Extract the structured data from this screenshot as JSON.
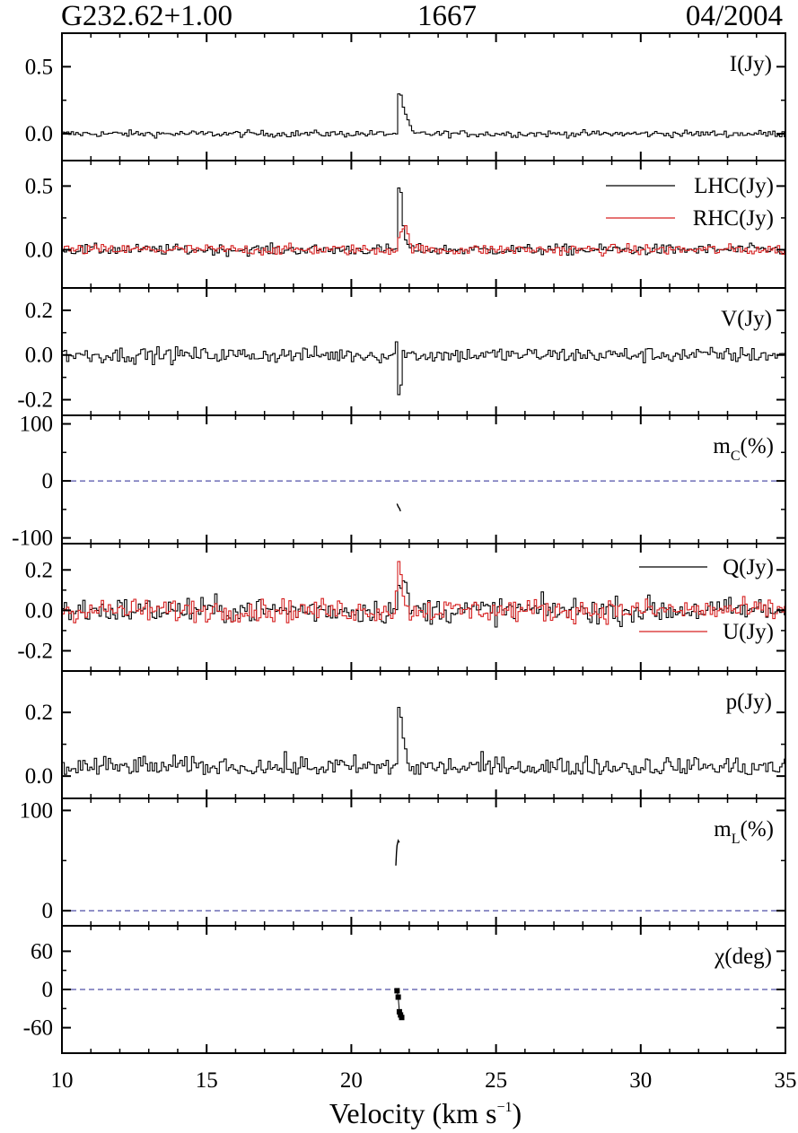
{
  "header": {
    "source": "G232.62+1.00",
    "frequency": "1667",
    "date": "04/2004"
  },
  "chart_data": {
    "type": "line",
    "xlabel": "Velocity (km s^-1)",
    "xlabel_parts": {
      "main": "Velocity (km s",
      "sup": "−1",
      "close": ")"
    },
    "xlim": [
      10,
      35
    ],
    "xticks": [
      10,
      15,
      20,
      25,
      30,
      35
    ],
    "panels": [
      {
        "id": "I",
        "label": "I(Jy)",
        "ylim": [
          -0.2,
          0.75
        ],
        "yticks": [
          0.0,
          0.5
        ],
        "ytick_labels": [
          "0.0",
          "0.5"
        ],
        "series": [
          {
            "color": "#000000",
            "style": "step",
            "noise": 0.018,
            "baseline": 0.0,
            "peaks": [
              [
                21.62,
                0.3
              ],
              [
                21.7,
                0.28
              ],
              [
                21.78,
                0.2
              ],
              [
                21.86,
                0.14
              ],
              [
                21.94,
                0.1
              ],
              [
                22.02,
                0.06
              ]
            ]
          }
        ]
      },
      {
        "id": "LHC_RHC",
        "label": "",
        "ylim": [
          -0.3,
          0.7
        ],
        "yticks": [
          0.0,
          0.5
        ],
        "ytick_labels": [
          "0.0",
          "0.5"
        ],
        "legend": [
          "LHC(Jy)",
          "RHC(Jy)"
        ],
        "series": [
          {
            "name": "LHC(Jy)",
            "color": "#000000",
            "style": "step",
            "noise": 0.03,
            "baseline": 0.0,
            "peaks": [
              [
                21.62,
                0.49
              ],
              [
                21.7,
                0.45
              ],
              [
                21.78,
                0.18
              ],
              [
                21.86,
                0.08
              ],
              [
                21.94,
                0.04
              ]
            ]
          },
          {
            "name": "RHC(Jy)",
            "color": "#d62020",
            "style": "step",
            "noise": 0.03,
            "baseline": 0.0,
            "peaks": [
              [
                21.62,
                0.1
              ],
              [
                21.7,
                0.14
              ],
              [
                21.78,
                0.16
              ],
              [
                21.86,
                0.18
              ],
              [
                21.94,
                0.12
              ],
              [
                22.02,
                0.06
              ]
            ]
          }
        ]
      },
      {
        "id": "V",
        "label": "V(Jy)",
        "ylim": [
          -0.27,
          0.3
        ],
        "yticks": [
          -0.2,
          0.0,
          0.2
        ],
        "ytick_labels": [
          "-0.2",
          "0.0",
          "0.2"
        ],
        "series": [
          {
            "color": "#000000",
            "style": "step",
            "noise": 0.025,
            "baseline": 0.0,
            "peaks": [
              [
                21.54,
                0.06
              ],
              [
                21.62,
                -0.18
              ],
              [
                21.7,
                -0.14
              ],
              [
                21.78,
                0.03
              ]
            ]
          }
        ]
      },
      {
        "id": "mc",
        "label": "m_C(%)",
        "label_parts": {
          "main": "m",
          "sub": "C",
          "tail": "(%)"
        },
        "ylim": [
          -110,
          115
        ],
        "yticks": [
          -100,
          0,
          100
        ],
        "ytick_labels": [
          "-100",
          "0",
          "100"
        ],
        "dashed_zero": true,
        "series": [
          {
            "color": "#000000",
            "style": "line",
            "points": [
              [
                21.58,
                -40
              ],
              [
                21.62,
                -45
              ],
              [
                21.66,
                -48
              ],
              [
                21.7,
                -53
              ]
            ]
          }
        ]
      },
      {
        "id": "QU",
        "label": "",
        "ylim": [
          -0.3,
          0.33
        ],
        "yticks": [
          -0.2,
          0.0,
          0.2
        ],
        "ytick_labels": [
          "-0.2",
          "0.0",
          "0.2"
        ],
        "legend": [
          "Q(Jy)",
          "U(Jy)"
        ],
        "series": [
          {
            "name": "Q(Jy)",
            "color": "#000000",
            "style": "step",
            "noise": 0.045,
            "baseline": 0.0,
            "peaks": [
              [
                21.62,
                0.12
              ],
              [
                21.7,
                0.1
              ],
              [
                21.78,
                0.16
              ],
              [
                21.86,
                0.12
              ],
              [
                21.94,
                0.08
              ]
            ]
          },
          {
            "name": "U(Jy)",
            "color": "#d62020",
            "style": "step",
            "noise": 0.04,
            "baseline": 0.0,
            "peaks": [
              [
                21.54,
                0.1
              ],
              [
                21.62,
                0.23
              ],
              [
                21.7,
                0.18
              ],
              [
                21.78,
                0.08
              ]
            ]
          }
        ]
      },
      {
        "id": "p",
        "label": "p(Jy)",
        "ylim": [
          -0.07,
          0.33
        ],
        "yticks": [
          0.0,
          0.2
        ],
        "ytick_labels": [
          "0.0",
          "0.2"
        ],
        "series": [
          {
            "color": "#000000",
            "style": "step",
            "noise": 0.028,
            "baseline": 0.025,
            "positive": true,
            "peaks": [
              [
                21.62,
                0.22
              ],
              [
                21.7,
                0.19
              ],
              [
                21.78,
                0.12
              ],
              [
                21.86,
                0.08
              ]
            ]
          }
        ]
      },
      {
        "id": "ml",
        "label": "m_L(%)",
        "label_parts": {
          "main": "m",
          "sub": "L",
          "tail": "(%)"
        },
        "ylim": [
          -15,
          112
        ],
        "yticks": [
          0,
          100
        ],
        "ytick_labels": [
          "0",
          "100"
        ],
        "dashed_zero": true,
        "series": [
          {
            "color": "#000000",
            "style": "line",
            "points": [
              [
                21.54,
                45
              ],
              [
                21.56,
                58
              ],
              [
                21.58,
                65
              ],
              [
                21.62,
                70
              ],
              [
                21.66,
                68
              ]
            ]
          }
        ]
      },
      {
        "id": "chi",
        "label": "χ(deg)",
        "ylim": [
          -100,
          100
        ],
        "yticks": [
          -60,
          0,
          60
        ],
        "ytick_labels": [
          "-60",
          "0",
          "60"
        ],
        "dashed_zero": true,
        "series": [
          {
            "color": "#000000",
            "style": "markers",
            "points": [
              [
                21.58,
                -2
              ],
              [
                21.62,
                -12
              ],
              [
                21.66,
                -35
              ],
              [
                21.7,
                -40
              ],
              [
                21.74,
                -44
              ]
            ]
          }
        ]
      }
    ]
  }
}
